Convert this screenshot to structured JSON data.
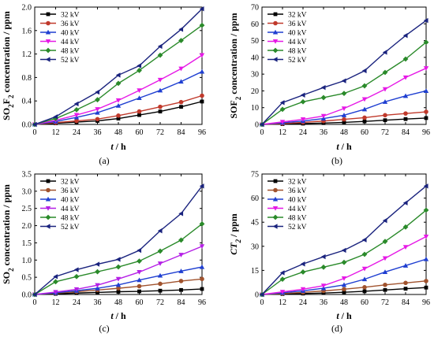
{
  "chart_data": [
    {
      "type": "line",
      "caption": "(a)",
      "xlabel_italic": "t",
      "xlabel_rest": " / h",
      "ylabel_parts": [
        {
          "t": "SO",
          "sub": false
        },
        {
          "t": "2",
          "sub": true
        },
        {
          "t": "F",
          "sub": false
        },
        {
          "t": "2",
          "sub": true
        },
        {
          "t": " concentration / ppm",
          "sub": false
        }
      ],
      "ylabel_italic": false,
      "xlim": [
        0,
        96
      ],
      "ylim": [
        0,
        2.0
      ],
      "xticks": [
        0,
        12,
        24,
        36,
        48,
        60,
        72,
        84,
        96
      ],
      "yticks": [
        0.0,
        0.4,
        0.8,
        1.2,
        1.6,
        2.0
      ],
      "ytick_labels": [
        "0.0",
        "0.4",
        "0.8",
        "1.2",
        "1.6",
        "2.0"
      ],
      "legend_position": "top-left",
      "x": [
        0,
        12,
        24,
        36,
        48,
        60,
        72,
        84,
        96
      ],
      "series": [
        {
          "name": "32 kV",
          "values": [
            0,
            0.02,
            0.04,
            0.06,
            0.1,
            0.16,
            0.22,
            0.3,
            0.39
          ]
        },
        {
          "name": "36 kV",
          "values": [
            0,
            0.03,
            0.06,
            0.09,
            0.15,
            0.22,
            0.3,
            0.38,
            0.49
          ]
        },
        {
          "name": "40 kV",
          "values": [
            0,
            0.05,
            0.12,
            0.2,
            0.32,
            0.45,
            0.58,
            0.73,
            0.9
          ]
        },
        {
          "name": "44 kV",
          "values": [
            0,
            0.07,
            0.16,
            0.26,
            0.41,
            0.58,
            0.76,
            0.95,
            1.18
          ]
        },
        {
          "name": "48 kV",
          "values": [
            0,
            0.1,
            0.25,
            0.42,
            0.7,
            0.92,
            1.18,
            1.43,
            1.69
          ]
        },
        {
          "name": "52 kV",
          "values": [
            0,
            0.13,
            0.35,
            0.55,
            0.84,
            1.0,
            1.33,
            1.62,
            1.97
          ]
        }
      ]
    },
    {
      "type": "line",
      "caption": "(b)",
      "xlabel_italic": "t",
      "xlabel_rest": " / h",
      "ylabel_parts": [
        {
          "t": "SOF",
          "sub": false
        },
        {
          "t": "2",
          "sub": true
        },
        {
          "t": " concentration / ppm",
          "sub": false
        }
      ],
      "ylabel_italic": false,
      "xlim": [
        0,
        96
      ],
      "ylim": [
        0,
        70
      ],
      "xticks": [
        0,
        12,
        24,
        36,
        48,
        60,
        72,
        84,
        96
      ],
      "yticks": [
        0,
        10,
        20,
        30,
        40,
        50,
        60,
        70
      ],
      "ytick_labels": [
        "0",
        "10",
        "20",
        "30",
        "40",
        "50",
        "60",
        "70"
      ],
      "legend_position": "top-left",
      "x": [
        0,
        12,
        24,
        36,
        48,
        60,
        72,
        84,
        96
      ],
      "series": [
        {
          "name": "32 kV",
          "values": [
            0,
            0.2,
            0.5,
            0.8,
            1.2,
            1.8,
            2.5,
            3.2,
            3.8
          ]
        },
        {
          "name": "36 kV",
          "values": [
            0,
            0.5,
            1.2,
            2.0,
            3.0,
            4.0,
            5.5,
            6.5,
            7.5
          ]
        },
        {
          "name": "40 kV",
          "values": [
            0,
            1.0,
            2.0,
            3.5,
            5.5,
            9.0,
            13.5,
            17.0,
            20.0
          ]
        },
        {
          "name": "44 kV",
          "values": [
            0,
            1.5,
            3.0,
            5.0,
            9.5,
            15.0,
            21.0,
            28.0,
            33.5
          ]
        },
        {
          "name": "48 kV",
          "values": [
            0,
            9.0,
            13.5,
            16.0,
            18.5,
            23.0,
            31.0,
            39.0,
            49.0
          ]
        },
        {
          "name": "52 kV",
          "values": [
            0,
            13.0,
            17.5,
            22.0,
            26.0,
            32.0,
            43.0,
            53.0,
            62.0
          ]
        }
      ]
    },
    {
      "type": "line",
      "caption": "(c)",
      "xlabel_italic": "t",
      "xlabel_rest": " / h",
      "ylabel_parts": [
        {
          "t": "SO",
          "sub": false
        },
        {
          "t": "2",
          "sub": true
        },
        {
          "t": " concentration / ppm",
          "sub": false
        }
      ],
      "ylabel_italic": false,
      "xlim": [
        0,
        96
      ],
      "ylim": [
        0,
        3.5
      ],
      "xticks": [
        0,
        12,
        24,
        36,
        48,
        60,
        72,
        84,
        96
      ],
      "yticks": [
        0.0,
        0.5,
        1.0,
        1.5,
        2.0,
        2.5,
        3.0,
        3.5
      ],
      "ytick_labels": [
        "0.0",
        "0.5",
        "1.0",
        "1.5",
        "2.0",
        "2.5",
        "3.0",
        "3.5"
      ],
      "legend_position": "top-left",
      "x": [
        0,
        12,
        24,
        36,
        48,
        60,
        72,
        84,
        96
      ],
      "series": [
        {
          "name": "32 kV",
          "values": [
            0,
            0.02,
            0.04,
            0.06,
            0.08,
            0.09,
            0.11,
            0.13,
            0.16
          ]
        },
        {
          "name": "36 kV",
          "values": [
            0,
            0.04,
            0.08,
            0.13,
            0.18,
            0.24,
            0.31,
            0.39,
            0.45
          ]
        },
        {
          "name": "40 kV",
          "values": [
            0,
            0.05,
            0.11,
            0.18,
            0.28,
            0.42,
            0.55,
            0.68,
            0.8
          ]
        },
        {
          "name": "44 kV",
          "values": [
            0,
            0.07,
            0.15,
            0.27,
            0.45,
            0.65,
            0.9,
            1.15,
            1.4
          ]
        },
        {
          "name": "48 kV",
          "values": [
            0,
            0.37,
            0.52,
            0.66,
            0.8,
            0.97,
            1.26,
            1.58,
            2.05
          ]
        },
        {
          "name": "52 kV",
          "values": [
            0,
            0.52,
            0.72,
            0.88,
            1.02,
            1.28,
            1.85,
            2.35,
            3.15
          ]
        }
      ]
    },
    {
      "type": "line",
      "caption": "(d)",
      "xlabel_italic": "t",
      "xlabel_rest": " / h",
      "ylabel_parts": [
        {
          "t": "CT",
          "sub": false
        },
        {
          "t": "2",
          "sub": true
        },
        {
          "t": " / ppm",
          "sub": false
        }
      ],
      "ylabel_italic": true,
      "xlim": [
        0,
        96
      ],
      "ylim": [
        0,
        75
      ],
      "xticks": [
        0,
        12,
        24,
        36,
        48,
        60,
        72,
        84,
        96
      ],
      "yticks": [
        0,
        15,
        30,
        45,
        60,
        75
      ],
      "ytick_labels": [
        "0",
        "15",
        "30",
        "45",
        "60",
        "75"
      ],
      "legend_position": "top-left",
      "x": [
        0,
        12,
        24,
        36,
        48,
        60,
        72,
        84,
        96
      ],
      "series": [
        {
          "name": "32 kV",
          "values": [
            0,
            0.3,
            0.6,
            0.9,
            1.4,
            2.0,
            2.8,
            3.6,
            4.3
          ]
        },
        {
          "name": "36 kV",
          "values": [
            0,
            0.6,
            1.3,
            2.2,
            3.3,
            4.5,
            6.0,
            7.2,
            8.4
          ]
        },
        {
          "name": "40 kV",
          "values": [
            0,
            1.1,
            2.3,
            3.9,
            6.0,
            9.5,
            14.0,
            18.0,
            22.0
          ]
        },
        {
          "name": "44 kV",
          "values": [
            0,
            1.6,
            3.3,
            5.5,
            10.0,
            16.0,
            22.5,
            29.5,
            36.0
          ]
        },
        {
          "name": "48 kV",
          "values": [
            0,
            9.5,
            14.0,
            17.0,
            20.0,
            25.0,
            33.0,
            42.0,
            52.5
          ]
        },
        {
          "name": "52 kV",
          "values": [
            0,
            13.5,
            19.0,
            23.5,
            27.5,
            34.0,
            46.0,
            57.0,
            67.5
          ]
        }
      ]
    }
  ],
  "style": {
    "series_colors": [
      "#000000",
      "#c0392b",
      "#1f3fd1",
      "#e619e6",
      "#2a8a2a",
      "#1a237e"
    ],
    "series_markers": [
      "square",
      "circle",
      "triangle-up",
      "triangle-down",
      "diamond",
      "triangle-left"
    ],
    "series_colors_c": [
      "#000000",
      "#a0522d",
      "#1f3fd1",
      "#b51fe6",
      "#2a8a2a",
      "#1a237e"
    ],
    "series_colors_d": [
      "#000000",
      "#a0522d",
      "#1f3fd1",
      "#e619e6",
      "#2a8a2a",
      "#1a237e"
    ]
  }
}
